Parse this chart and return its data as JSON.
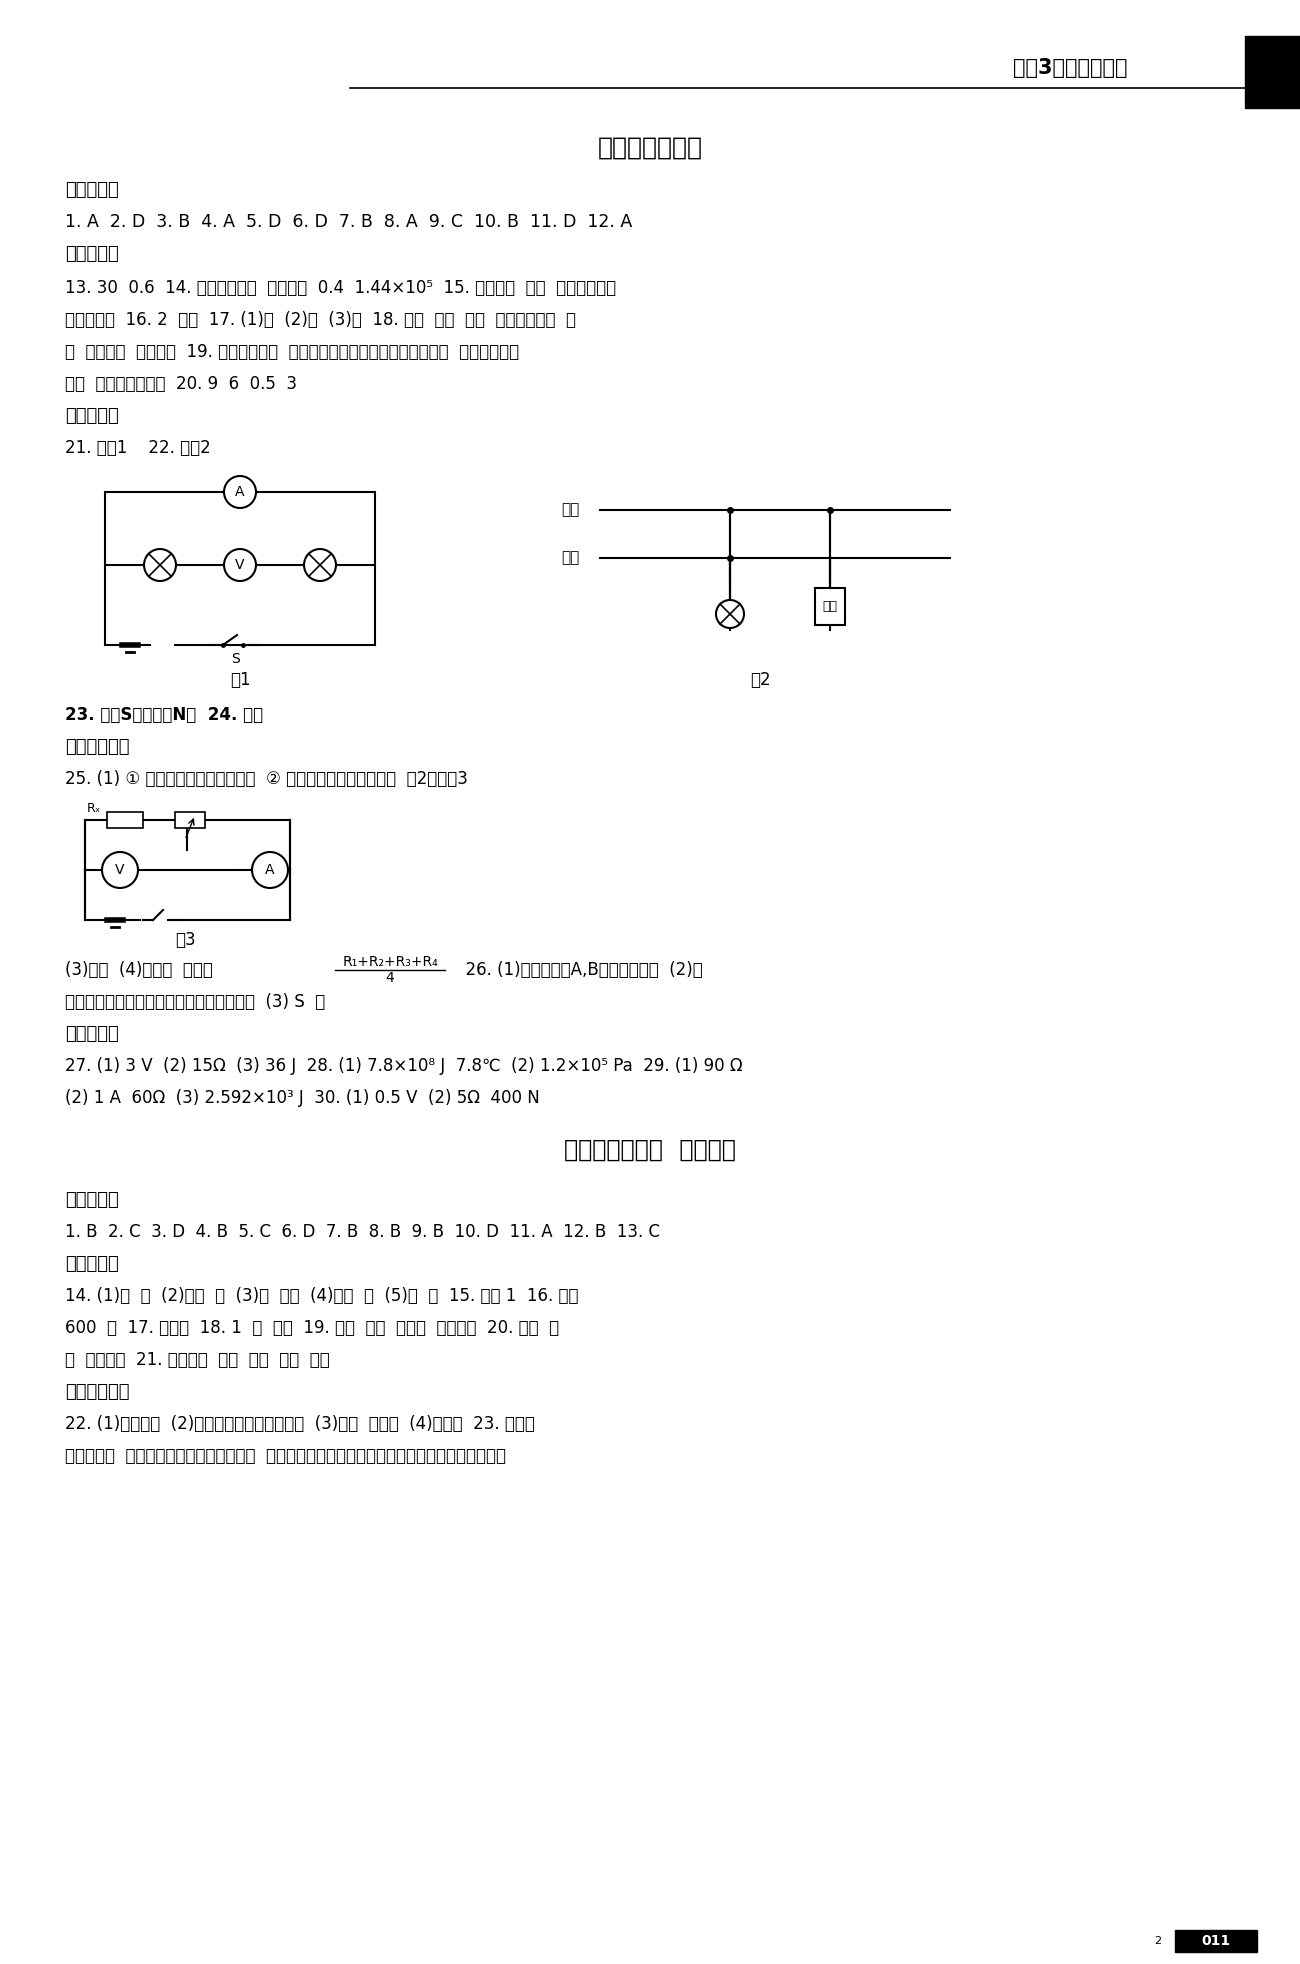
{
  "bg_color": "#ffffff",
  "header_text": "《金3练》参考答案",
  "title1": "期中测试（二）",
  "section1": "一、选择题",
  "line1": "1. A  2. D  3. B  4. A  5. D  6. D  7. B  8. A  9. C  10. B  11. D  12. A",
  "section2": "二、填空题",
  "line2": "13. 30  0.6  14. 额定工作电压  额定功率  0.4  1.44×10⁵  15. 条形磁鐵  加强  增大螺线管线",
  "line3": "圈中的电流  16. 2  大于  17. (1)下  (2)下  (3)上  18. 电流  磁性  衔鐵  高压工作电路  工",
  "line4": "作  失去磁性  停止工作  19. 电流的热效应  防止产生的电热过多，导致温度过高  通过产生电热",
  "line5": "除湿  电能转化为内能  20. 9  6  0.5  3",
  "section3": "三、作图题",
  "line6": "21. 见图1    22. 见图2",
  "fig1_label": "图1",
  "fig2_label": "图2",
  "line7": "23. 右端S极，左端N极  24. 图略",
  "section4": "四、实验探究",
  "line8": "25. (1) ① 滑动变阵器接为定値电阵  ② 电流表正负极接线柱接反  （2）见图3",
  "fig3_label": "图3",
  "line9_left": "(3)试触  (4)电流表  电压表  ",
  "frac_num": "R₁+R₂+R₃+R₄",
  "frac_den": "4",
  "line9_right": "  26. (1)控制电磁鐵A,B上的电流相等  (2)当",
  "line10": "其他条件相同时，线圈匹数越多，磁性越强  (3) S  左",
  "section5": "五、计算题",
  "line11": "27. (1) 3 V  (2) 15Ω  (3) 36 J  28. (1) 7.8×10⁸ J  7.8℃  (2) 1.2×10⁵ Pa  29. (1) 90 Ω",
  "line12": "(2) 1 A  60Ω  (3) 2.592×10³ J  30. (1) 0.5 V  (2) 5Ω  400 N",
  "title2": "第十七、十八章  过关检测",
  "section6": "一、选择题",
  "line13": "1. B  2. C  3. D  4. B  5. C  6. D  7. B  8. B  9. B  10. D  11. A  12. B  13. C",
  "section7": "二、填空题",
  "line14": "14. (1)电  光  (2)机械  电  (3)光  化学  (4)化学  内  (5)核  电  15. 电磁 1  16. 平衡",
  "line15": "600  能  17. 反应堆  18. 1  电  化学  19. 火力  水力  葛洲坝  长江三峡  20. 广泛  方",
  "line16": "便  保护环境  21. 高频振荡  调制  发射  调谐  检波",
  "section8": "三、科学探究",
  "line17": "22. (1)电磁感应  (2)减少输电线上电能的损耗  (3)核能  机械能  (4)核辐射  23. 电磁波",
  "line18": "真空不传声  金属电梯屏蔽了电磁波的信号  将手机放入金属盒，用另一个电话拨通该手机号观察能",
  "page_label": "011"
}
